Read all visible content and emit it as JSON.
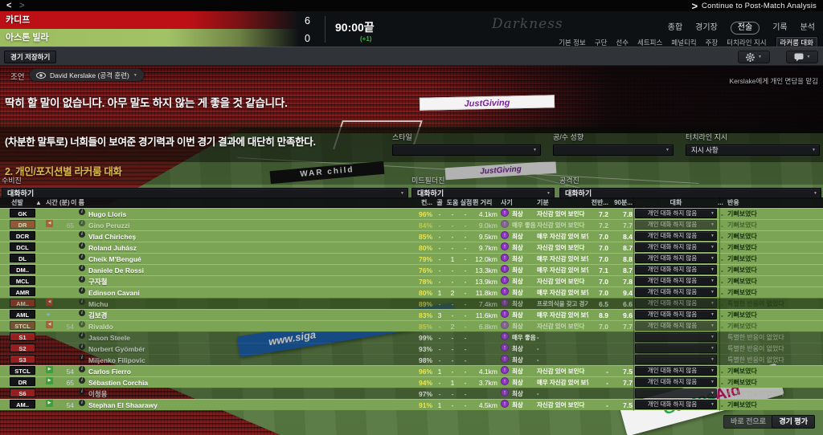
{
  "icons": {
    "dropdown": "▼",
    "sort": "▲",
    "back": "<",
    "forward": ">",
    "continue_arrow": ">",
    "info": "i",
    "morale_up": "↑",
    "sub_off": "◀",
    "sub_on": "▶",
    "star": "★"
  },
  "top_bar": {
    "continue_label": "Continue to Post-Match Analysis"
  },
  "scoreboard": {
    "home_name": "카디프",
    "home_score": "6",
    "away_name": "아스톤 빌라",
    "away_score": "0",
    "clock": "90:00끝",
    "added_time": "(+1)",
    "brand": "Darkness",
    "home_color": "#bc1016",
    "away_color": "#a2c266"
  },
  "nav": {
    "primary": [
      "종합",
      "경기장",
      "전술",
      "기록",
      "분석"
    ],
    "primary_active": "전술",
    "secondary": [
      "기본 정보",
      "구단",
      "선수",
      "세트피스",
      "페널티킥",
      "주장",
      "터치라인 지시",
      "라커룸 대화"
    ],
    "secondary_active": "라커룸 대화"
  },
  "toolbar": {
    "save_label": "경기 저장하기"
  },
  "advice": {
    "label": "조언",
    "advisor": "David Kerslake (공격 훈련)",
    "text": "딱히 할 말이 없습니다. 아무 말도 하지 않는 게 좋을 것 같습니다.",
    "tooltip": "Kerslake에게 개인 면담을 맡김"
  },
  "team_talk": {
    "message": "(차분한 말투로) 너희들이 보여준 경기력과 이번 경기 결과에 대단히 만족한다.",
    "style_label": "스타일",
    "style_value": "",
    "attack_label": "공/수 성향",
    "attack_value": "",
    "touchline_label": "터치라인 지시",
    "touchline_value": "지시 사항"
  },
  "section2": {
    "title": "2. 개인/포지션별 라커룸 대화",
    "groups": [
      {
        "label": "수비진",
        "value": "대화하기"
      },
      {
        "label": "미드필더진",
        "value": "대화하기"
      },
      {
        "label": "공격진",
        "value": "대화하기"
      }
    ]
  },
  "table": {
    "headers": [
      "선발",
      "시간 (분)",
      "이 름",
      "컨...",
      "골",
      "도움",
      "실점",
      "뛴 거리",
      "사기",
      "기분",
      "전반...",
      "90분...",
      "대화",
      "...",
      "반응"
    ],
    "rows": [
      {
        "pos": "GK",
        "badge": "dark",
        "sub": "",
        "min": "",
        "name": "Hugo Lloris",
        "style": "g",
        "cond": "96%",
        "g": "-",
        "a": "-",
        "c": "-",
        "dist": "4.1km",
        "morale": "최상",
        "mood": "자신감 있어 보인다",
        "r1": "7.2",
        "r2": "7.8",
        "talk": "개인 대화 하지 않음",
        "talkStyle": "n",
        "react": "기뻐보였다"
      },
      {
        "pos": "DR",
        "badge": "red",
        "sub": "off",
        "min": "65",
        "name": "Gino Peruzzi",
        "style": "gd",
        "cond": "84%",
        "g": "-",
        "a": "-",
        "c": "-",
        "dist": "9.0km",
        "morale": "매우 좋음",
        "mood": "자신감 있어 보인다",
        "r1": "7.2",
        "r2": "7.7",
        "talk": "개인 대화 하지 않음",
        "talkStyle": "d",
        "react": "기뻐보였다"
      },
      {
        "pos": "DCR",
        "badge": "dark",
        "sub": "",
        "min": "",
        "name": "Vlad Chiricheş",
        "style": "g",
        "cond": "85%",
        "g": "-",
        "a": "-",
        "c": "-",
        "dist": "9.5km",
        "morale": "최상",
        "mood": "매우 자신감 있어 보인다",
        "r1": "7.0",
        "r2": "8.4",
        "talk": "개인 대화 하지 않음",
        "talkStyle": "n",
        "react": "기뻐보였다"
      },
      {
        "pos": "DCL",
        "badge": "dark",
        "sub": "",
        "min": "",
        "name": "Roland Juhász",
        "style": "g",
        "cond": "80%",
        "g": "-",
        "a": "-",
        "c": "-",
        "dist": "9.7km",
        "morale": "최상",
        "mood": "자신감 있어 보인다",
        "r1": "7.0",
        "r2": "8.7",
        "talk": "개인 대화 하지 않음",
        "talkStyle": "n",
        "react": "기뻐보였다"
      },
      {
        "pos": "DL",
        "badge": "dark",
        "sub": "",
        "min": "",
        "name": "Cheik M'Bengué",
        "style": "g",
        "cond": "79%",
        "g": "-",
        "a": "1",
        "c": "-",
        "dist": "12.0km",
        "morale": "최상",
        "mood": "매우 자신감 있어 보인다",
        "r1": "7.0",
        "r2": "8.8",
        "talk": "개인 대화 하지 않음",
        "talkStyle": "n",
        "react": "기뻐보였다"
      },
      {
        "pos": "DM..",
        "badge": "dark",
        "sub": "",
        "min": "",
        "name": "Daniele De Rossi",
        "style": "g",
        "cond": "76%",
        "g": "-",
        "a": "-",
        "c": "-",
        "dist": "13.3km",
        "morale": "최상",
        "mood": "매우 자신감 있어 보인다",
        "r1": "7.1",
        "r2": "8.7",
        "talk": "개인 대화 하지 않음",
        "talkStyle": "n",
        "react": "기뻐보였다"
      },
      {
        "pos": "MCL",
        "badge": "dark",
        "sub": "",
        "min": "",
        "name": "구자철",
        "style": "g",
        "cond": "78%",
        "g": "-",
        "a": "-",
        "c": "-",
        "dist": "13.9km",
        "morale": "최상",
        "mood": "자신감 있어 보인다",
        "r1": "7.0",
        "r2": "7.8",
        "talk": "개인 대화 하지 않음",
        "talkStyle": "n",
        "react": "기뻐보였다"
      },
      {
        "pos": "AMR",
        "badge": "dark",
        "sub": "",
        "min": "",
        "name": "Edinson Cavani",
        "style": "g",
        "cond": "80%",
        "g": "1",
        "a": "2",
        "c": "-",
        "dist": "11.8km",
        "morale": "최상",
        "mood": "매우 자신감 있어 보인다",
        "r1": "7.0",
        "r2": "9.4",
        "talk": "개인 대화 하지 않음",
        "talkStyle": "n",
        "react": "기뻐보였다"
      },
      {
        "pos": "AM..",
        "badge": "red",
        "sub": "off",
        "min": "",
        "name": "Michu",
        "style": "dk",
        "cond": "89%",
        "g": "-",
        "a": "-",
        "c": "-",
        "dist": "7.4km",
        "morale": "최상",
        "mood": "프로의식을 갖고 경기..",
        "r1": "6.5",
        "r2": "6.6",
        "talk": "개인 대화 하지 않음",
        "talkStyle": "d",
        "react": "특별한 반응이 없었다"
      },
      {
        "pos": "AML",
        "badge": "dark",
        "sub": "star",
        "min": "",
        "name": "김보경",
        "style": "g",
        "cond": "83%",
        "g": "3",
        "a": "-",
        "c": "-",
        "dist": "11.6km",
        "morale": "최상",
        "mood": "매우 자신감 있어 보인다",
        "r1": "8.9",
        "r2": "9.6",
        "talk": "개인 대화 하지 않음",
        "talkStyle": "n",
        "react": "기뻐보였다"
      },
      {
        "pos": "STCL",
        "badge": "dred",
        "sub": "off",
        "min": "54",
        "name": "Rivaldo",
        "style": "gd",
        "cond": "85%",
        "g": "-",
        "a": "2",
        "c": "-",
        "dist": "6.8km",
        "morale": "최상",
        "mood": "자신감 있어 보인다",
        "r1": "7.0",
        "r2": "7.7",
        "talk": "개인 대화 하지 않음",
        "talkStyle": "d",
        "react": "기뻐보였다"
      },
      {
        "pos": "S1",
        "badge": "red",
        "sub": "",
        "min": "",
        "name": "Jason Steele",
        "style": "cd",
        "cond": "99%",
        "g": "-",
        "a": "-",
        "c": "-",
        "dist": "",
        "morale": "매우 좋음",
        "mood": "-",
        "r1": "",
        "r2": "",
        "talk": "",
        "talkStyle": "e",
        "react": "특별한 반응이 없었다"
      },
      {
        "pos": "S2",
        "badge": "red",
        "sub": "",
        "min": "",
        "name": "Norbert Gyömbér",
        "style": "cd",
        "cond": "93%",
        "g": "-",
        "a": "-",
        "c": "-",
        "dist": "",
        "morale": "최상",
        "mood": "-",
        "r1": "",
        "r2": "",
        "talk": "",
        "talkStyle": "e",
        "react": "특별한 반응이 없었다"
      },
      {
        "pos": "S3",
        "badge": "red",
        "sub": "",
        "min": "",
        "name": "Miljenko Filipovic",
        "style": "cd",
        "cond": "98%",
        "g": "-",
        "a": "-",
        "c": "-",
        "dist": "",
        "morale": "최상",
        "mood": "-",
        "r1": "",
        "r2": "",
        "talk": "",
        "talkStyle": "e",
        "react": "특별한 반응이 없었다"
      },
      {
        "pos": "STCL",
        "badge": "dark",
        "sub": "on",
        "min": "54",
        "name": "Carlos Fierro",
        "style": "g",
        "cond": "96%",
        "g": "1",
        "a": "-",
        "c": "-",
        "dist": "4.1km",
        "morale": "최상",
        "mood": "자신감 있어 보인다",
        "r1": "-",
        "r2": "7.5",
        "talk": "개인 대화 하지 않음",
        "talkStyle": "n",
        "react": "기뻐보였다"
      },
      {
        "pos": "DR",
        "badge": "dark",
        "sub": "on",
        "min": "65",
        "name": "Sébastien Corchia",
        "style": "g",
        "cond": "94%",
        "g": "-",
        "a": "1",
        "c": "-",
        "dist": "3.7km",
        "morale": "최상",
        "mood": "매우 자신감 있어 보인다",
        "r1": "-",
        "r2": "7.7",
        "talk": "개인 대화 하지 않음",
        "talkStyle": "n",
        "react": "기뻐보였다"
      },
      {
        "pos": "S6",
        "badge": "red",
        "sub": "",
        "min": "",
        "name": "이청용",
        "style": "cd",
        "cond": "97%",
        "g": "-",
        "a": "-",
        "c": "-",
        "dist": "",
        "morale": "최상",
        "mood": "-",
        "r1": "",
        "r2": "",
        "talk": "",
        "talkStyle": "e",
        "react": "특별한 반응이 없었다"
      },
      {
        "pos": "AM..",
        "badge": "dark",
        "sub": "on",
        "min": "54",
        "name": "Stephan El Shaarawy",
        "style": "g",
        "cond": "91%",
        "g": "1",
        "a": "-",
        "c": "-",
        "dist": "4.5km",
        "morale": "최상",
        "mood": "자신감 있어 보인다",
        "r1": "-",
        "r2": "7.5",
        "talk": "개인 대화 하지 않음",
        "talkStyle": "n",
        "react": "기뻐보였다"
      }
    ]
  },
  "footer": {
    "back_label": "바로 전으로",
    "rate_label": "경기 평가"
  },
  "ads": {
    "board1": "JustGiving",
    "board2": "WAR child",
    "board3": "JustGiving",
    "board4": "www.siga",
    "board5a": "Games",
    "board5b": "Aid"
  }
}
